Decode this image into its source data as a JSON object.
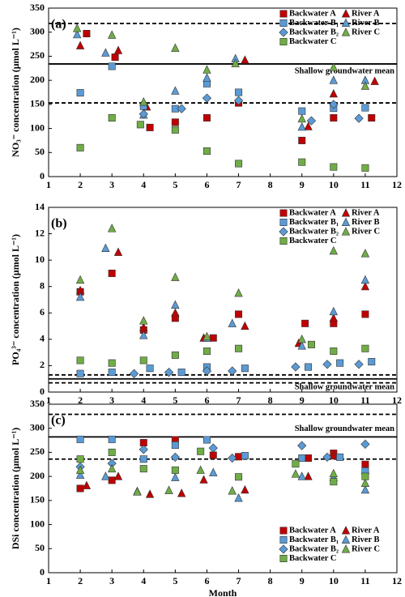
{
  "chart_data": [
    {
      "type": "scatter",
      "panel_label": "(a)",
      "ylabel": "NO₃⁻ concentration (μmol L⁻¹)",
      "xlim": [
        1,
        12
      ],
      "xticks": [
        1,
        2,
        3,
        4,
        5,
        6,
        7,
        8,
        9,
        10,
        11,
        12
      ],
      "ylim": [
        0,
        350
      ],
      "yticks": [
        0,
        50,
        100,
        150,
        200,
        250,
        300,
        350
      ],
      "legend": "upper right",
      "annotation": "Shallow groundwater mean",
      "reference_lines": [
        {
          "value": 318,
          "style": "dashed"
        },
        {
          "value": 234,
          "style": "solid"
        },
        {
          "value": 153,
          "style": "dashed"
        }
      ],
      "series": [
        {
          "name": "Backwater A",
          "color": "#c00000",
          "marker": "square",
          "x": [
            2.2,
            3.1,
            4.2,
            5.0,
            6.0,
            7.0,
            9.0,
            10.0,
            11.2
          ],
          "values": [
            297,
            248,
            102,
            113,
            122,
            153,
            75,
            122,
            122
          ]
        },
        {
          "name": "River A",
          "color": "#c00000",
          "marker": "triangle",
          "x": [
            2.0,
            3.2,
            4.1,
            5.0,
            6.2,
            7.2,
            9.2,
            10.0,
            11.3
          ],
          "values": [
            272,
            262,
            145,
            null,
            null,
            242,
            104,
            172,
            198
          ]
        },
        {
          "name": "Backwater B₁",
          "color": "#5b9bd5",
          "marker": "square",
          "x": [
            2.0,
            3.0,
            4.0,
            5.0,
            6.0,
            7.0,
            9.0,
            10.0,
            11.0
          ],
          "values": [
            174,
            229,
            146,
            141,
            193,
            175,
            136,
            142,
            143
          ]
        },
        {
          "name": "River B",
          "color": "#5b9bd5",
          "marker": "triangle",
          "x": [
            1.9,
            2.8,
            4.0,
            5.0,
            6.0,
            6.9,
            9.0,
            10.0,
            11.0
          ],
          "values": [
            295,
            257,
            128,
            178,
            205,
            245,
            103,
            200,
            200
          ]
        },
        {
          "name": "Backwater B₂",
          "color": "#5b9bd5",
          "marker": "diamond",
          "x": [
            2.0,
            3.0,
            4.0,
            5.2,
            6.0,
            7.0,
            9.3,
            10.0,
            10.8
          ],
          "values": [
            null,
            null,
            130,
            141,
            163,
            158,
            116,
            150,
            121
          ]
        },
        {
          "name": "River C",
          "color": "#70ad47",
          "marker": "triangle",
          "x": [
            1.9,
            3.0,
            4.0,
            5.0,
            6.0,
            6.9,
            9.0,
            10.0,
            11.0
          ],
          "values": [
            308,
            294,
            155,
            267,
            222,
            235,
            120,
            227,
            188
          ]
        },
        {
          "name": "Backwater C",
          "color": "#70ad47",
          "marker": "square",
          "x": [
            2.0,
            3.0,
            3.9,
            5.0,
            6.0,
            7.0,
            9.0,
            10.0,
            11.0
          ],
          "values": [
            60,
            122,
            108,
            97,
            53,
            27,
            30,
            20,
            18
          ]
        }
      ]
    },
    {
      "type": "scatter",
      "panel_label": "(b)",
      "ylabel": "PO₄³⁻ concentration (μmol L⁻¹)",
      "xlim": [
        1,
        12
      ],
      "xticks": [
        1,
        2,
        3,
        4,
        5,
        6,
        7,
        8,
        9,
        10,
        11,
        12
      ],
      "ylim": [
        0,
        14
      ],
      "yticks": [
        0,
        2,
        4,
        6,
        8,
        10,
        12,
        14
      ],
      "legend": "upper right",
      "annotation": "Shallow groundwater mean",
      "reference_lines": [
        {
          "value": 1.3,
          "style": "dashed"
        },
        {
          "value": 1.0,
          "style": "solid"
        },
        {
          "value": 0.7,
          "style": "dashed"
        }
      ],
      "series": [
        {
          "name": "Backwater A",
          "color": "#c00000",
          "marker": "square",
          "x": [
            2.0,
            3.0,
            4.0,
            5.0,
            6.2,
            7.0,
            9.1,
            10.0,
            11.0
          ],
          "values": [
            7.6,
            9.0,
            4.7,
            5.6,
            4.1,
            5.9,
            5.2,
            5.2,
            5.9
          ]
        },
        {
          "name": "River A",
          "color": "#c00000",
          "marker": "triangle",
          "x": [
            2.0,
            3.2,
            4.0,
            5.0,
            5.9,
            7.2,
            8.9,
            10.0,
            11.0
          ],
          "values": [
            7.7,
            10.6,
            4.9,
            6.0,
            4.1,
            5.0,
            3.7,
            5.6,
            8.0
          ]
        },
        {
          "name": "Backwater B₁",
          "color": "#5b9bd5",
          "marker": "square",
          "x": [
            2.0,
            3.0,
            4.2,
            5.2,
            6.0,
            7.2,
            9.2,
            10.2,
            11.2
          ],
          "values": [
            1.4,
            1.5,
            1.8,
            1.5,
            1.9,
            1.8,
            1.9,
            2.2,
            2.3
          ]
        },
        {
          "name": "River B",
          "color": "#5b9bd5",
          "marker": "triangle",
          "x": [
            2.0,
            2.8,
            4.0,
            5.0,
            6.0,
            6.8,
            9.0,
            10.0,
            11.0
          ],
          "values": [
            7.2,
            10.9,
            4.3,
            6.6,
            4.1,
            5.2,
            3.5,
            6.1,
            8.5
          ]
        },
        {
          "name": "Backwater B₂",
          "color": "#5b9bd5",
          "marker": "diamond",
          "x": [
            2.0,
            3.7,
            4.8,
            6.0,
            6.8,
            8.8,
            9.8,
            10.8,
            11.0
          ],
          "values": [
            null,
            1.4,
            1.5,
            1.6,
            1.6,
            1.9,
            2.1,
            2.1,
            null
          ]
        },
        {
          "name": "River C",
          "color": "#70ad47",
          "marker": "triangle",
          "x": [
            2.0,
            3.0,
            4.0,
            5.0,
            6.0,
            7.0,
            9.0,
            10.0,
            11.0
          ],
          "values": [
            8.5,
            12.4,
            5.4,
            8.7,
            4.2,
            7.5,
            4.0,
            10.7,
            10.5
          ]
        },
        {
          "name": "Backwater C",
          "color": "#70ad47",
          "marker": "square",
          "x": [
            2.0,
            3.0,
            4.0,
            5.0,
            6.0,
            7.0,
            9.3,
            10.0,
            11.0
          ],
          "values": [
            2.4,
            2.2,
            2.4,
            2.8,
            3.1,
            3.3,
            3.6,
            3.1,
            3.3
          ]
        }
      ]
    },
    {
      "type": "scatter",
      "panel_label": "(c)",
      "ylabel": "DSi concentration (μmol L⁻¹)",
      "xlabel": "Month",
      "xlim": [
        1,
        12
      ],
      "xticks": [
        1,
        2,
        3,
        4,
        5,
        6,
        7,
        8,
        9,
        10,
        11,
        12
      ],
      "ylim": [
        0,
        350
      ],
      "yticks": [
        0,
        50,
        100,
        150,
        200,
        250,
        300,
        350
      ],
      "legend": "lower right",
      "annotation": "Shallow groundwater mean",
      "reference_lines": [
        {
          "value": 329,
          "style": "dashed"
        },
        {
          "value": 282,
          "style": "solid"
        },
        {
          "value": 236,
          "style": "dashed"
        }
      ],
      "series": [
        {
          "name": "Backwater A",
          "color": "#c00000",
          "marker": "square",
          "x": [
            2.0,
            3.0,
            4.0,
            5.0,
            6.2,
            7.0,
            9.2,
            10.0,
            11.0
          ],
          "values": [
            175,
            192,
            270,
            276,
            244,
            241,
            238,
            248,
            225
          ]
        },
        {
          "name": "River A",
          "color": "#c00000",
          "marker": "triangle",
          "x": [
            2.2,
            3.2,
            4.2,
            5.2,
            5.9,
            7.2,
            9.2,
            10.0,
            11.0
          ],
          "values": [
            181,
            200,
            163,
            165,
            193,
            172,
            200,
            243,
            213
          ]
        },
        {
          "name": "Backwater B₁",
          "color": "#5b9bd5",
          "marker": "square",
          "x": [
            2.0,
            3.0,
            4.0,
            5.0,
            6.0,
            7.2,
            9.0,
            10.2,
            11.0
          ],
          "values": [
            277,
            277,
            236,
            265,
            276,
            243,
            238,
            240,
            211
          ]
        },
        {
          "name": "River B",
          "color": "#5b9bd5",
          "marker": "triangle",
          "x": [
            2.0,
            2.8,
            3.8,
            5.0,
            6.2,
            7.0,
            9.0,
            10.0,
            11.0
          ],
          "values": [
            203,
            200,
            169,
            198,
            208,
            155,
            200,
            198,
            172
          ]
        },
        {
          "name": "Backwater B₂",
          "color": "#5b9bd5",
          "marker": "diamond",
          "x": [
            2.0,
            3.0,
            4.0,
            5.0,
            6.2,
            6.8,
            9.0,
            9.8,
            11.0
          ],
          "values": [
            220,
            227,
            256,
            240,
            259,
            238,
            264,
            240,
            267
          ]
        },
        {
          "name": "River C",
          "color": "#70ad47",
          "marker": "triangle",
          "x": [
            2.0,
            3.0,
            3.8,
            4.8,
            5.8,
            6.8,
            8.8,
            10.0,
            11.0
          ],
          "values": [
            213,
            216,
            168,
            171,
            213,
            170,
            205,
            206,
            186
          ]
        },
        {
          "name": "Backwater C",
          "color": "#70ad47",
          "marker": "square",
          "x": [
            2.0,
            3.0,
            4.0,
            5.0,
            5.8,
            7.0,
            8.8,
            10.0,
            11.0
          ],
          "values": [
            236,
            250,
            216,
            213,
            252,
            199,
            226,
            189,
            200
          ]
        }
      ]
    }
  ]
}
